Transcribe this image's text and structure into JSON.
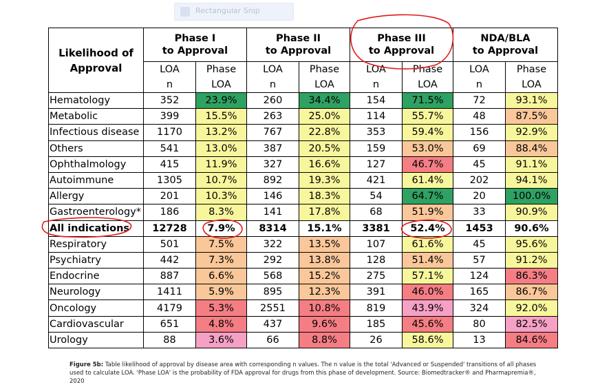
{
  "colors": {
    "dark_green": "#2fa162",
    "light_yellow": "#f8f69d",
    "orange": "#f9c799",
    "red": "#f47e84",
    "pink": "#f5a1c4",
    "annotation_red": "#e01919"
  },
  "snip_toolbar": {
    "icon": "rectangle-snip-icon",
    "label": "Rectangular Snip"
  },
  "table": {
    "corner_header": [
      "Likelihood of",
      "Approval"
    ],
    "phases": [
      [
        "Phase I",
        "to Approval"
      ],
      [
        "Phase II",
        "to Approval"
      ],
      [
        "Phase III",
        "to Approval"
      ],
      [
        "NDA/BLA",
        "to Approval"
      ]
    ],
    "subheaders": [
      [
        "LOA",
        "n"
      ],
      [
        "Phase",
        "LOA"
      ]
    ],
    "rows": [
      {
        "name": "Hematology",
        "cells": [
          [
            "352",
            "23.9%",
            "g"
          ],
          [
            "260",
            "34.4%",
            "g"
          ],
          [
            "154",
            "71.5%",
            "g"
          ],
          [
            "72",
            "93.1%",
            "y"
          ]
        ]
      },
      {
        "name": "Metabolic",
        "cells": [
          [
            "399",
            "15.5%",
            "y"
          ],
          [
            "263",
            "25.0%",
            "y"
          ],
          [
            "114",
            "55.7%",
            "y"
          ],
          [
            "48",
            "87.5%",
            "o"
          ]
        ]
      },
      {
        "name": "Infectious disease",
        "cells": [
          [
            "1170",
            "13.2%",
            "y"
          ],
          [
            "767",
            "22.8%",
            "y"
          ],
          [
            "353",
            "59.4%",
            "y"
          ],
          [
            "156",
            "92.9%",
            "y"
          ]
        ]
      },
      {
        "name": "Others",
        "cells": [
          [
            "541",
            "13.0%",
            "y"
          ],
          [
            "387",
            "20.5%",
            "y"
          ],
          [
            "159",
            "53.0%",
            "o"
          ],
          [
            "69",
            "88.4%",
            "o"
          ]
        ]
      },
      {
        "name": "Ophthalmology",
        "cells": [
          [
            "415",
            "11.9%",
            "y"
          ],
          [
            "327",
            "16.6%",
            "y"
          ],
          [
            "127",
            "46.7%",
            "r"
          ],
          [
            "45",
            "91.1%",
            "y"
          ]
        ]
      },
      {
        "name": "Autoimmune",
        "cells": [
          [
            "1305",
            "10.7%",
            "y"
          ],
          [
            "892",
            "19.3%",
            "y"
          ],
          [
            "421",
            "61.4%",
            "y"
          ],
          [
            "202",
            "94.1%",
            "y"
          ]
        ]
      },
      {
        "name": "Allergy",
        "cells": [
          [
            "201",
            "10.3%",
            "y"
          ],
          [
            "146",
            "18.3%",
            "y"
          ],
          [
            "54",
            "64.7%",
            "g"
          ],
          [
            "20",
            "100.0%",
            "g"
          ]
        ]
      },
      {
        "name": "Gastroenterology*",
        "cells": [
          [
            "186",
            "8.3%",
            "y"
          ],
          [
            "141",
            "17.8%",
            "y"
          ],
          [
            "68",
            "51.9%",
            "o"
          ],
          [
            "33",
            "90.9%",
            "y"
          ]
        ]
      },
      {
        "name": "All indications",
        "bold": true,
        "cells": [
          [
            "12728",
            "7.9%",
            "w"
          ],
          [
            "8314",
            "15.1%",
            "w"
          ],
          [
            "3381",
            "52.4%",
            "w"
          ],
          [
            "1453",
            "90.6%",
            "w"
          ]
        ]
      },
      {
        "name": "Respiratory",
        "cells": [
          [
            "501",
            "7.5%",
            "o"
          ],
          [
            "322",
            "13.5%",
            "o"
          ],
          [
            "107",
            "61.6%",
            "y"
          ],
          [
            "45",
            "95.6%",
            "y"
          ]
        ]
      },
      {
        "name": "Psychiatry",
        "cells": [
          [
            "442",
            "7.3%",
            "o"
          ],
          [
            "292",
            "13.8%",
            "o"
          ],
          [
            "128",
            "51.4%",
            "o"
          ],
          [
            "57",
            "91.2%",
            "y"
          ]
        ]
      },
      {
        "name": "Endocrine",
        "cells": [
          [
            "887",
            "6.6%",
            "o"
          ],
          [
            "568",
            "15.2%",
            "o"
          ],
          [
            "275",
            "57.1%",
            "y"
          ],
          [
            "124",
            "86.3%",
            "r"
          ]
        ]
      },
      {
        "name": "Neurology",
        "cells": [
          [
            "1411",
            "5.9%",
            "o"
          ],
          [
            "895",
            "12.3%",
            "o"
          ],
          [
            "391",
            "46.0%",
            "r"
          ],
          [
            "165",
            "86.7%",
            "o"
          ]
        ]
      },
      {
        "name": "Oncology",
        "cells": [
          [
            "4179",
            "5.3%",
            "r"
          ],
          [
            "2551",
            "10.8%",
            "r"
          ],
          [
            "819",
            "43.9%",
            "p"
          ],
          [
            "324",
            "92.0%",
            "y"
          ]
        ]
      },
      {
        "name": "Cardiovascular",
        "cells": [
          [
            "651",
            "4.8%",
            "r"
          ],
          [
            "437",
            "9.6%",
            "r"
          ],
          [
            "185",
            "45.6%",
            "r"
          ],
          [
            "80",
            "82.5%",
            "p"
          ]
        ]
      },
      {
        "name": "Urology",
        "cells": [
          [
            "88",
            "3.6%",
            "p"
          ],
          [
            "66",
            "8.8%",
            "r"
          ],
          [
            "26",
            "58.6%",
            "y"
          ],
          [
            "13",
            "84.6%",
            "r"
          ]
        ]
      }
    ]
  },
  "caption": {
    "label": "Figure 5b:",
    "text": " Table likelihood of approval by disease area with corresponding n values. The n value is the total 'Advanced or Suspended' transitions of all phases used to calculate LOA. 'Phase LOA' is the probability of FDA approval for drugs from this phase of development. Source: Biomedtracker® and Pharmapremia®, 2020"
  }
}
